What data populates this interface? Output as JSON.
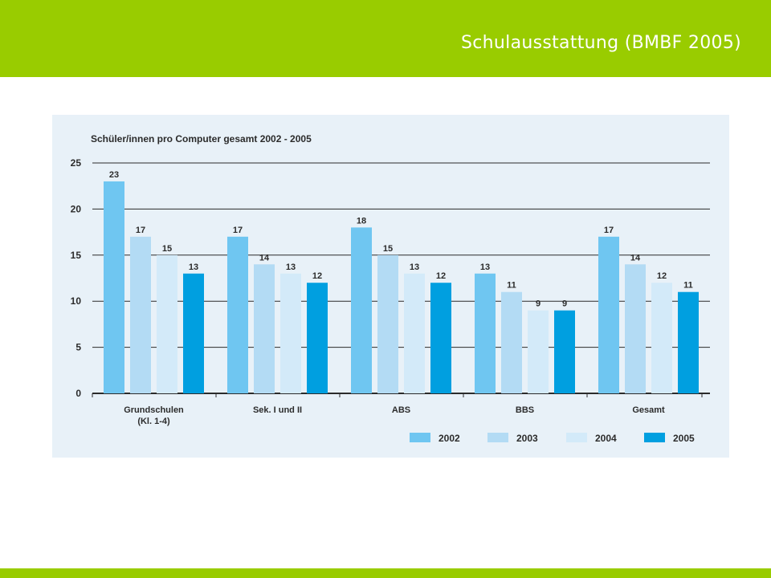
{
  "header": {
    "title": "Schulausstattung (BMBF 2005)"
  },
  "colors": {
    "brand_green": "#99cc00",
    "panel_bg": "#e8f1f8"
  },
  "chart_data": {
    "type": "bar",
    "title": "Schüler/innen pro Computer gesamt 2002 - 2005",
    "xlabel": "",
    "ylabel": "",
    "ylim": [
      0,
      25
    ],
    "yticks": [
      0,
      5,
      10,
      15,
      20,
      25
    ],
    "grid": true,
    "legend_position": "bottom-right",
    "categories": [
      [
        "Grundschulen",
        "(Kl. 1-4)"
      ],
      [
        "Sek. I und II"
      ],
      [
        "ABS"
      ],
      [
        "BBS"
      ],
      [
        "Gesamt"
      ]
    ],
    "series": [
      {
        "name": "2002",
        "color": "#6fc6f1",
        "values": [
          23,
          17,
          18,
          13,
          17
        ]
      },
      {
        "name": "2003",
        "color": "#b3dbf4",
        "values": [
          17,
          14,
          15,
          11,
          14
        ]
      },
      {
        "name": "2004",
        "color": "#d3eaf9",
        "values": [
          15,
          13,
          13,
          9,
          12
        ]
      },
      {
        "name": "2005",
        "color": "#009fe0",
        "values": [
          13,
          12,
          12,
          9,
          11
        ]
      }
    ]
  }
}
